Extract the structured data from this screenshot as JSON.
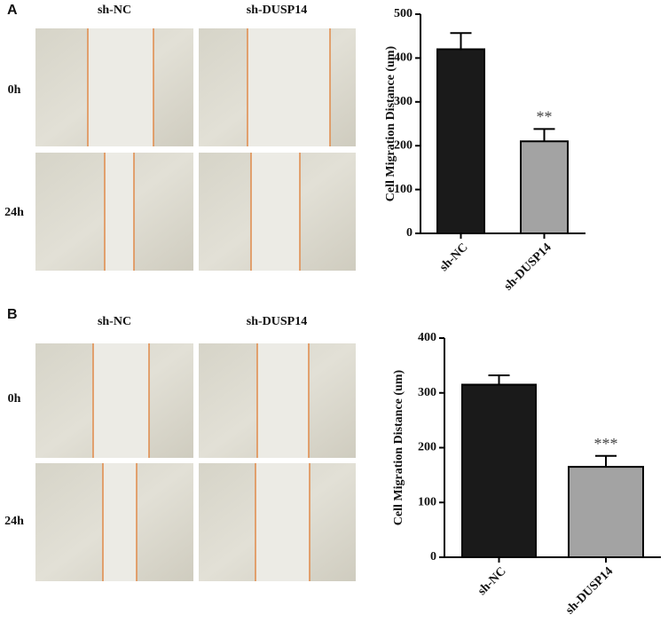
{
  "panels": [
    {
      "label": "A",
      "columns": [
        "sh-NC",
        "sh-DUSP14"
      ],
      "rows": [
        "0h",
        "24h"
      ]
    },
    {
      "label": "B",
      "columns": [
        "sh-NC",
        "sh-DUSP14"
      ],
      "rows": [
        "0h",
        "24h"
      ]
    }
  ],
  "chart_data": [
    {
      "type": "bar",
      "ylabel": "Cell Migration Distance (um)",
      "categories": [
        "sh-NC",
        "sh-DUSP14"
      ],
      "values": [
        420,
        210
      ],
      "errors": [
        37,
        28
      ],
      "colors": [
        "#1a1a1a",
        "#a3a3a3"
      ],
      "ylim": [
        0,
        500
      ],
      "yticks": [
        0,
        100,
        200,
        300,
        400,
        500
      ],
      "annotation": "**"
    },
    {
      "type": "bar",
      "ylabel": "Cell Migration Distance (um)",
      "categories": [
        "sh-NC",
        "sh-DUSP14"
      ],
      "values": [
        315,
        165
      ],
      "errors": [
        17,
        20
      ],
      "colors": [
        "#1a1a1a",
        "#a3a3a3"
      ],
      "ylim": [
        0,
        400
      ],
      "yticks": [
        0,
        100,
        200,
        300,
        400
      ],
      "annotation": "***"
    }
  ]
}
